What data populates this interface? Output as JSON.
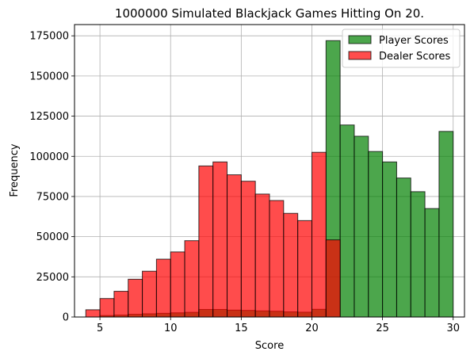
{
  "chart_data": {
    "type": "bar",
    "title": "1000000 Simulated Blackjack Games Hitting On 20.",
    "xlabel": "Score",
    "ylabel": "Frequency",
    "xlim": [
      3.2,
      30.8
    ],
    "ylim": [
      0,
      182000
    ],
    "x_ticks": [
      5,
      10,
      15,
      20,
      25,
      30
    ],
    "y_ticks": [
      0,
      25000,
      50000,
      75000,
      100000,
      125000,
      150000,
      175000
    ],
    "grid": true,
    "legend_position": "top-right",
    "bin_width": 1,
    "series": [
      {
        "name": "Player Scores",
        "color": "#008000",
        "alpha": 0.7,
        "bins": [
          [
            4,
            0
          ],
          [
            5,
            900
          ],
          [
            6,
            1200
          ],
          [
            7,
            1700
          ],
          [
            8,
            2000
          ],
          [
            9,
            2300
          ],
          [
            10,
            2600
          ],
          [
            11,
            2900
          ],
          [
            12,
            4700
          ],
          [
            13,
            4700
          ],
          [
            14,
            4300
          ],
          [
            15,
            4100
          ],
          [
            16,
            3800
          ],
          [
            17,
            3600
          ],
          [
            18,
            3200
          ],
          [
            19,
            3000
          ],
          [
            20,
            4800
          ],
          [
            21,
            172000
          ],
          [
            22,
            119500
          ],
          [
            23,
            112500
          ],
          [
            24,
            103000
          ],
          [
            25,
            96500
          ],
          [
            26,
            86500
          ],
          [
            27,
            78000
          ],
          [
            28,
            67500
          ],
          [
            29,
            115500
          ]
        ]
      },
      {
        "name": "Dealer Scores",
        "color": "#ff0000",
        "alpha": 0.7,
        "bins": [
          [
            4,
            4500
          ],
          [
            5,
            11500
          ],
          [
            6,
            16000
          ],
          [
            7,
            23500
          ],
          [
            8,
            28500
          ],
          [
            9,
            36000
          ],
          [
            10,
            40500
          ],
          [
            11,
            47500
          ],
          [
            12,
            94000
          ],
          [
            13,
            96500
          ],
          [
            14,
            88500
          ],
          [
            15,
            84500
          ],
          [
            16,
            76500
          ],
          [
            17,
            72500
          ],
          [
            18,
            64500
          ],
          [
            19,
            60000
          ],
          [
            20,
            102500
          ],
          [
            21,
            48000
          ]
        ]
      }
    ]
  }
}
